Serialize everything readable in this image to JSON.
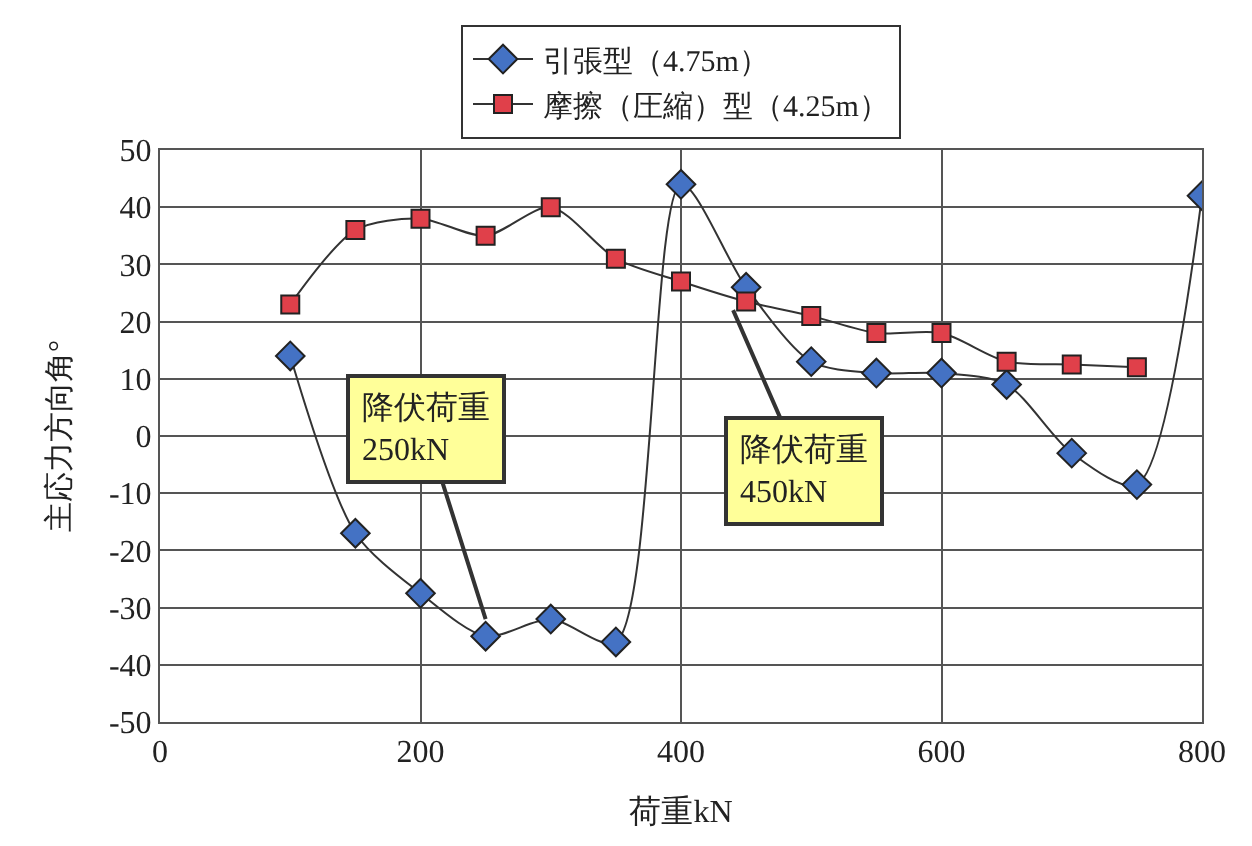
{
  "chart_data": {
    "type": "line",
    "xlabel": "荷重kN",
    "ylabel": "主応力方向角°",
    "x": [
      100,
      150,
      200,
      250,
      300,
      350,
      400,
      450,
      500,
      550,
      600,
      650,
      700,
      750,
      800
    ],
    "series": [
      {
        "name": "引張型（4.75m）",
        "color": "#4472c4",
        "marker": "diamond",
        "values": [
          14,
          -17,
          -27.5,
          -35,
          -32,
          -36,
          44,
          26,
          13,
          11,
          11,
          9,
          -3,
          -8.5,
          42
        ]
      },
      {
        "name": "摩擦（圧縮）型（4.25m）",
        "color": "#e0404a",
        "marker": "square",
        "values": [
          23,
          36,
          38,
          35,
          40,
          31,
          27,
          23.5,
          21,
          18,
          18,
          13,
          12.5,
          12,
          null
        ]
      }
    ],
    "xlim": [
      0,
      800
    ],
    "xticks": [
      0,
      200,
      400,
      600,
      800
    ],
    "ylim": [
      -50,
      50
    ],
    "yticks": [
      -50,
      -40,
      -30,
      -20,
      -10,
      0,
      10,
      20,
      30,
      40,
      50
    ],
    "grid": true,
    "legend": "top",
    "annotations": [
      {
        "text": "降伏荷重\n250kN",
        "x": 250,
        "y": -32
      },
      {
        "text": "降伏荷重\n450kN",
        "x": 440,
        "y": 22
      }
    ]
  }
}
